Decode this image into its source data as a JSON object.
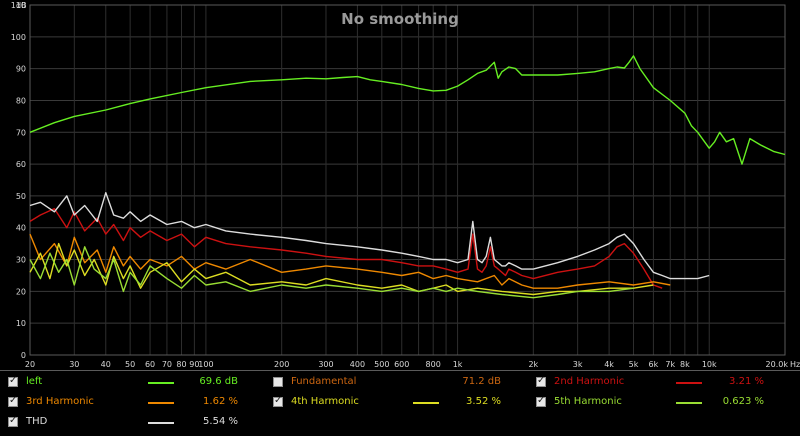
{
  "chart_data": {
    "type": "line",
    "title": "No smoothing",
    "ylabel": "dB",
    "xlabel": "Hz",
    "xscale": "log",
    "xlim": [
      20,
      20000
    ],
    "ylim": [
      0,
      110
    ],
    "grid": true,
    "y_ticks": [
      "0",
      "10",
      "20",
      "30",
      "40",
      "50",
      "60",
      "70",
      "80",
      "90",
      "100",
      "110"
    ],
    "x_ticks": [
      "20",
      "30",
      "40",
      "50",
      "60",
      "70",
      "80",
      "90",
      "100",
      "200",
      "300",
      "400",
      "500",
      "600",
      "800",
      "1k",
      "2k",
      "3k",
      "4k",
      "5k",
      "6k",
      "7k",
      "8k",
      "10k",
      "20.0k"
    ],
    "series": [
      {
        "name": "left",
        "color": "#66ee22",
        "x": [
          20,
          25,
          30,
          40,
          50,
          60,
          80,
          100,
          150,
          200,
          250,
          300,
          350,
          400,
          450,
          500,
          600,
          700,
          800,
          900,
          1000,
          1100,
          1200,
          1300,
          1400,
          1450,
          1500,
          1600,
          1700,
          1800,
          2000,
          2500,
          3000,
          3500,
          4000,
          4300,
          4600,
          4800,
          5000,
          5300,
          6000,
          7000,
          8000,
          8500,
          9000,
          10000,
          10500,
          11000,
          11700,
          12500,
          13500,
          14500,
          16000,
          18000,
          20000
        ],
        "y": [
          70,
          73,
          75,
          77,
          79,
          80.5,
          82.5,
          84,
          86,
          86.5,
          87,
          86.8,
          87.2,
          87.5,
          86.5,
          86,
          85,
          83.8,
          83,
          83.2,
          84.5,
          86.5,
          88.5,
          89.5,
          92,
          87,
          89,
          90.5,
          90,
          88,
          88,
          88,
          88.5,
          89,
          90,
          90.5,
          90.2,
          92,
          94,
          90,
          84,
          80,
          76,
          72,
          70,
          65,
          67,
          70,
          67,
          68,
          60,
          68,
          66,
          64,
          63
        ]
      },
      {
        "name": "2nd Harmonic",
        "color": "#cc1111",
        "x": [
          20,
          22,
          25,
          28,
          30,
          33,
          37,
          40,
          43,
          47,
          50,
          55,
          60,
          70,
          80,
          90,
          100,
          120,
          150,
          200,
          250,
          300,
          400,
          500,
          600,
          700,
          800,
          900,
          1000,
          1100,
          1150,
          1200,
          1250,
          1300,
          1350,
          1400,
          1450,
          1500,
          1550,
          1600,
          1700,
          1800,
          2000,
          2500,
          3000,
          3500,
          4000,
          4300,
          4600,
          5000,
          5500,
          6000,
          6500
        ],
        "y": [
          42,
          44,
          46,
          40,
          45,
          39,
          43,
          38,
          41,
          36,
          40,
          37,
          39,
          36,
          38,
          34,
          37,
          35,
          34,
          33,
          32,
          31,
          30,
          30,
          29,
          28,
          28,
          27,
          26,
          27,
          38,
          27,
          26,
          28,
          34,
          28,
          27,
          26,
          25,
          27,
          26,
          25,
          24,
          26,
          27,
          28,
          31,
          34,
          35,
          32,
          27,
          22,
          21
        ]
      },
      {
        "name": "3rd Harmonic",
        "color": "#ee8800",
        "x": [
          20,
          22,
          25,
          28,
          30,
          33,
          37,
          40,
          43,
          47,
          50,
          55,
          60,
          70,
          80,
          90,
          100,
          120,
          150,
          200,
          250,
          300,
          400,
          500,
          600,
          700,
          800,
          900,
          1000,
          1200,
          1400,
          1500,
          1600,
          1800,
          2000,
          2500,
          3000,
          4000,
          5000,
          6000,
          7000
        ],
        "y": [
          38,
          30,
          35,
          28,
          37,
          29,
          33,
          26,
          34,
          28,
          31,
          27,
          30,
          28,
          31,
          27,
          29,
          27,
          30,
          26,
          27,
          28,
          27,
          26,
          25,
          26,
          24,
          25,
          24,
          23,
          25,
          22,
          24,
          22,
          21,
          21,
          22,
          23,
          22,
          23,
          22
        ]
      },
      {
        "name": "4th Harmonic",
        "color": "#dddd22",
        "x": [
          20,
          22,
          24,
          26,
          28,
          30,
          33,
          36,
          40,
          43,
          47,
          50,
          55,
          60,
          70,
          80,
          90,
          100,
          120,
          150,
          200,
          250,
          300,
          400,
          500,
          600,
          700,
          800,
          900,
          1000,
          1200,
          1500,
          2000,
          2500,
          3000,
          4000,
          5000,
          6000
        ],
        "y": [
          26,
          32,
          24,
          35,
          28,
          33,
          25,
          30,
          22,
          31,
          24,
          28,
          21,
          26,
          29,
          23,
          27,
          24,
          26,
          22,
          23,
          22,
          24,
          22,
          21,
          22,
          20,
          21,
          22,
          20,
          21,
          20,
          19,
          20,
          20,
          21,
          21,
          22
        ]
      },
      {
        "name": "5th Harmonic",
        "color": "#99dd33",
        "x": [
          20,
          22,
          24,
          26,
          28,
          30,
          33,
          36,
          40,
          43,
          47,
          50,
          55,
          60,
          70,
          80,
          90,
          100,
          120,
          150,
          200,
          250,
          300,
          400,
          500,
          600,
          700,
          800,
          900,
          1000,
          1200,
          1500,
          2000,
          2500,
          3000,
          4000,
          5000
        ],
        "y": [
          30,
          24,
          32,
          26,
          30,
          22,
          34,
          27,
          24,
          30,
          20,
          26,
          22,
          28,
          24,
          21,
          25,
          22,
          23,
          20,
          22,
          21,
          22,
          21,
          20,
          21,
          20,
          21,
          20,
          21,
          20,
          19,
          18,
          19,
          20,
          20,
          21
        ]
      },
      {
        "name": "THD",
        "color": "#dddddd",
        "x": [
          20,
          22,
          25,
          28,
          30,
          33,
          37,
          40,
          43,
          47,
          50,
          55,
          60,
          70,
          80,
          90,
          100,
          120,
          150,
          200,
          250,
          300,
          400,
          500,
          600,
          700,
          800,
          900,
          1000,
          1100,
          1150,
          1200,
          1250,
          1300,
          1350,
          1400,
          1450,
          1500,
          1550,
          1600,
          1700,
          1800,
          2000,
          2500,
          3000,
          3500,
          4000,
          4300,
          4600,
          5000,
          5500,
          6000,
          6500,
          7000,
          8000,
          9000,
          10000
        ],
        "y": [
          47,
          48,
          45,
          50,
          44,
          47,
          42,
          51,
          44,
          43,
          45,
          42,
          44,
          41,
          42,
          40,
          41,
          39,
          38,
          37,
          36,
          35,
          34,
          33,
          32,
          31,
          30,
          30,
          29,
          30,
          42,
          30,
          29,
          31,
          37,
          30,
          29,
          28,
          28,
          29,
          28,
          27,
          27,
          29,
          31,
          33,
          35,
          37,
          38,
          35,
          30,
          26,
          25,
          24,
          24,
          24,
          25
        ]
      }
    ]
  },
  "legend": {
    "items": [
      {
        "label": "left",
        "value": "69.6 dB",
        "checked": true,
        "color": "#66ee22"
      },
      {
        "label": "Fundamental",
        "value": "71.2 dB",
        "checked": false,
        "color": "#cc6611"
      },
      {
        "label": "2nd Harmonic",
        "value": "3.21 %",
        "checked": true,
        "color": "#cc1111"
      },
      {
        "label": "3rd Harmonic",
        "value": "1.62 %",
        "checked": true,
        "color": "#ee8800"
      },
      {
        "label": "4th Harmonic",
        "value": "3.52 %",
        "checked": true,
        "color": "#dddd22"
      },
      {
        "label": "5th Harmonic",
        "value": "0.623 %",
        "checked": true,
        "color": "#99dd33"
      },
      {
        "label": "THD",
        "value": "5.54 %",
        "checked": true,
        "color": "#dddddd"
      }
    ]
  },
  "colors": {
    "background": "#000000",
    "grid": "#3a3a3a",
    "axis": "#808080"
  }
}
